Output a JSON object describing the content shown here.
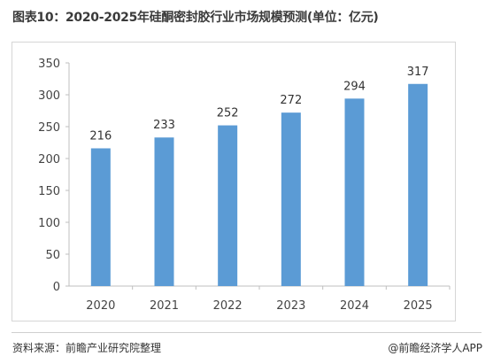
{
  "title": "图表10：2020-2025年硅酮密封胶行业市场规模预测(单位：亿元)",
  "source": "资料来源：前瞻产业研究院整理",
  "brand": "@前瞻经济学人APP",
  "colors": {
    "bar": "#5b9bd5",
    "axis": "#bfbfbf",
    "text": "#444444"
  },
  "chart_data": {
    "type": "bar",
    "categories": [
      "2020",
      "2021",
      "2022",
      "2023",
      "2024",
      "2025"
    ],
    "values": [
      216,
      233,
      252,
      272,
      294,
      317
    ],
    "data_labels": [
      "216",
      "233",
      "252",
      "272",
      "294",
      "317"
    ],
    "yticks": [
      0,
      50,
      100,
      150,
      200,
      250,
      300,
      350
    ],
    "ylim": [
      0,
      350
    ],
    "xlabel": "",
    "ylabel": "",
    "grid": false,
    "legend": "none"
  }
}
